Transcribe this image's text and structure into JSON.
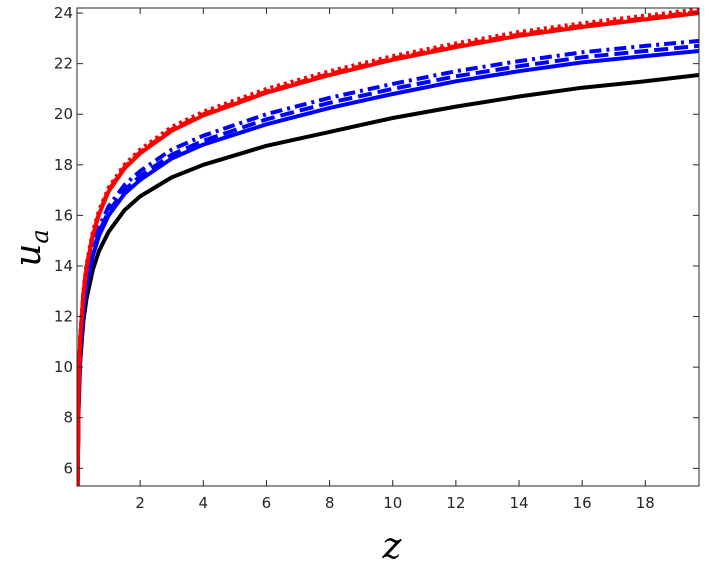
{
  "chart_data": {
    "type": "line",
    "title": "",
    "xlabel": "z",
    "ylabel": "u",
    "ylabel_subscript": "a",
    "xlim": [
      0,
      19.7
    ],
    "ylim": [
      5.3,
      24.2
    ],
    "xticks": [
      2,
      4,
      6,
      8,
      10,
      12,
      14,
      16,
      18
    ],
    "yticks": [
      6,
      8,
      10,
      12,
      14,
      16,
      18,
      20,
      22,
      24
    ],
    "grid": false,
    "legend": "none",
    "series": [
      {
        "color": "#000000",
        "dash": "solid",
        "x": [
          0.02,
          0.05,
          0.1,
          0.2,
          0.3,
          0.5,
          0.7,
          1.0,
          1.5,
          2,
          3,
          4,
          6,
          8,
          10,
          12,
          14,
          16,
          18,
          19.7
        ],
        "y": [
          5.3,
          8.3,
          10.2,
          11.8,
          12.7,
          13.85,
          14.6,
          15.35,
          16.2,
          16.75,
          17.5,
          18.0,
          18.75,
          19.3,
          19.85,
          20.3,
          20.7,
          21.05,
          21.3,
          21.55
        ]
      },
      {
        "color": "#0000ff",
        "dash": "solid",
        "x": [
          0.02,
          0.05,
          0.1,
          0.2,
          0.3,
          0.5,
          0.7,
          1.0,
          1.5,
          2,
          3,
          4,
          6,
          8,
          10,
          12,
          14,
          16,
          18,
          19.7
        ],
        "y": [
          5.3,
          8.6,
          10.6,
          12.2,
          13.2,
          14.4,
          15.2,
          16.0,
          16.85,
          17.4,
          18.25,
          18.8,
          19.6,
          20.25,
          20.8,
          21.3,
          21.7,
          22.05,
          22.3,
          22.5
        ]
      },
      {
        "color": "#0000ff",
        "dash": "dashed",
        "x": [
          0.02,
          0.05,
          0.1,
          0.2,
          0.3,
          0.5,
          0.7,
          1.0,
          1.5,
          2,
          3,
          4,
          6,
          8,
          10,
          12,
          14,
          16,
          18,
          19.7
        ],
        "y": [
          5.3,
          8.7,
          10.7,
          12.35,
          13.35,
          14.55,
          15.35,
          16.15,
          17.0,
          17.55,
          18.4,
          18.95,
          19.8,
          20.45,
          21.0,
          21.5,
          21.9,
          22.25,
          22.5,
          22.7
        ]
      },
      {
        "color": "#0000ff",
        "dash": "dashdot",
        "x": [
          0.02,
          0.05,
          0.1,
          0.2,
          0.3,
          0.5,
          0.7,
          1.0,
          1.5,
          2,
          3,
          4,
          6,
          8,
          10,
          12,
          14,
          16,
          18,
          19.7
        ],
        "y": [
          5.3,
          8.8,
          10.85,
          12.5,
          13.5,
          14.75,
          15.55,
          16.35,
          17.2,
          17.75,
          18.6,
          19.15,
          20.0,
          20.65,
          21.2,
          21.7,
          22.1,
          22.45,
          22.7,
          22.9
        ]
      },
      {
        "color": "#ff0000",
        "dash": "solid",
        "x": [
          0.02,
          0.05,
          0.1,
          0.2,
          0.3,
          0.5,
          0.7,
          1.0,
          1.5,
          2,
          3,
          4,
          6,
          8,
          10,
          12,
          14,
          16,
          18,
          19.7
        ],
        "y": [
          5.3,
          9.0,
          11.1,
          12.85,
          13.9,
          15.2,
          16.05,
          16.95,
          17.85,
          18.45,
          19.35,
          19.95,
          20.85,
          21.55,
          22.15,
          22.65,
          23.1,
          23.45,
          23.75,
          24.0
        ]
      },
      {
        "color": "#ff0000",
        "dash": "dashed",
        "x": [
          0.02,
          0.05,
          0.1,
          0.2,
          0.3,
          0.5,
          0.7,
          1.0,
          1.5,
          2,
          3,
          4,
          6,
          8,
          10,
          12,
          14,
          16,
          18,
          19.7
        ],
        "y": [
          5.3,
          9.05,
          11.15,
          12.9,
          13.95,
          15.25,
          16.1,
          17.0,
          17.9,
          18.5,
          19.4,
          20.0,
          20.9,
          21.6,
          22.2,
          22.7,
          23.15,
          23.5,
          23.8,
          24.05
        ]
      },
      {
        "color": "#ff0000",
        "dash": "dotted",
        "x": [
          0.02,
          0.05,
          0.1,
          0.2,
          0.3,
          0.5,
          0.7,
          1.0,
          1.5,
          2,
          3,
          4,
          6,
          8,
          10,
          12,
          14,
          16,
          18,
          19.7
        ],
        "y": [
          5.3,
          9.1,
          11.2,
          13.0,
          14.05,
          15.35,
          16.2,
          17.1,
          18.0,
          18.6,
          19.5,
          20.1,
          21.0,
          21.7,
          22.3,
          22.8,
          23.25,
          23.6,
          23.9,
          24.15
        ]
      }
    ]
  }
}
